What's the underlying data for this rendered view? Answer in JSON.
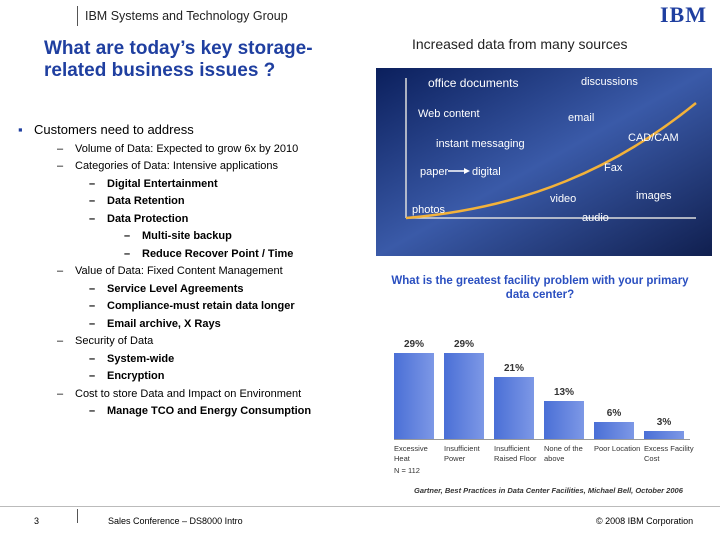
{
  "header": {
    "group": "IBM Systems and Technology Group",
    "logo": "IBM"
  },
  "title": "What are today’s key storage-related business issues ?",
  "bullets": [
    {
      "text": "Customers need to address",
      "items": [
        {
          "text": "Volume of Data: Expected to grow 6x by 2010"
        },
        {
          "text": "Categories of Data: Intensive applications",
          "items": [
            {
              "text": "Digital Entertainment"
            },
            {
              "text": "Data Retention"
            },
            {
              "text": "Data Protection",
              "items": [
                {
                  "text": "Multi-site backup"
                },
                {
                  "text": "Reduce Recover Point / Time"
                }
              ]
            }
          ]
        },
        {
          "text": "Value of Data: Fixed Content Management",
          "items": [
            {
              "text": "Service Level Agreements"
            },
            {
              "text": "Compliance-must retain data longer"
            },
            {
              "text": "Email archive, X Rays"
            }
          ]
        },
        {
          "text": "Security of Data",
          "items": [
            {
              "text": "System-wide"
            },
            {
              "text": "Encryption"
            }
          ]
        },
        {
          "text": "Cost to store Data and Impact on Environment",
          "items": [
            {
              "text": "Manage TCO and Energy Consumption"
            }
          ]
        }
      ]
    }
  ],
  "graphic": {
    "heading": "Increased data from many sources",
    "labels": [
      "office documents",
      "discussions",
      "Web content",
      "email",
      "instant messaging",
      "CAD/CAM",
      "paper",
      "digital",
      "Fax",
      "photos",
      "video",
      "images",
      "audio"
    ]
  },
  "chart_data": {
    "type": "bar",
    "title": "What is the greatest facility problem with your primary data center?",
    "categories": [
      "Excessive Heat",
      "Insufficient Power",
      "Insufficient Raised Floor",
      "None of the above",
      "Poor Location",
      "Excess Facility Cost"
    ],
    "values": [
      29,
      29,
      21,
      13,
      6,
      3
    ],
    "value_labels": [
      "29%",
      "29%",
      "21%",
      "13%",
      "6%",
      "3%"
    ],
    "color": "#4a6fd6",
    "note": "N = 112",
    "source": "Gartner, Best Practices in Data Center Facilities, Michael Bell, October 2006"
  },
  "footer": {
    "page": "3",
    "event": "Sales Conference – DS8000 Intro",
    "copyright": "© 2008 IBM Corporation"
  }
}
